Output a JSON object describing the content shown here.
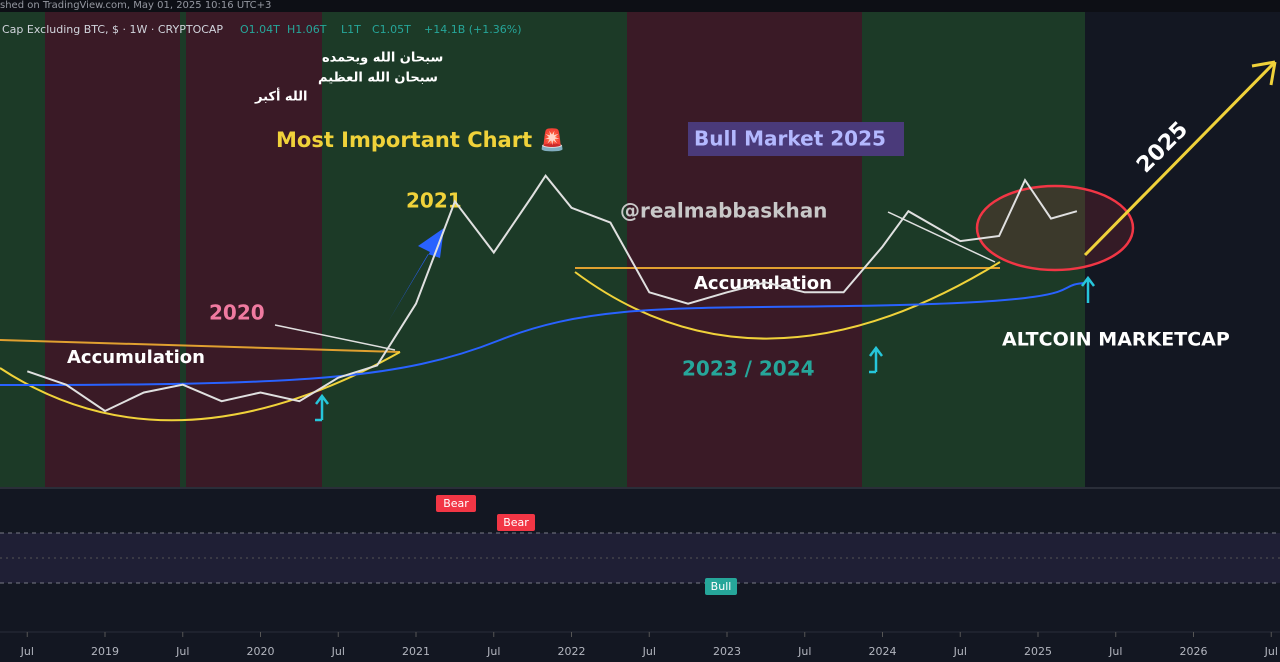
{
  "header": {
    "text": "shed on TradingView.com, May 01, 2025 10:16 UTC+3"
  },
  "symbol": {
    "name": "Cap Excluding BTC, $ · 1W · CRYPTOCAP",
    "open": "O1.04T",
    "high": "H1.06T",
    "low": "L1T",
    "close": "C1.05T",
    "change": "+14.1B (+1.36%)"
  },
  "arabic": [
    "سبحان الله وبحمده",
    "سبحان الله العظيم",
    "الله أكبر"
  ],
  "annotations": {
    "main_title": "Most Important Chart 🚨",
    "bull": "Bull Market 2025",
    "y2021": "2021",
    "y2020": "2020",
    "handle": "@realmabbaskhan",
    "accumulation_1": "Accumulation",
    "accumulation_2": "Accumulation",
    "y2023_2024": "2023 / 2024",
    "y2025": "2025",
    "altcoin": "ALTCOIN MARKETCAP"
  },
  "rsi_labels": {
    "bear_1": "Bear",
    "bear_2": "Bear",
    "bull": "Bull"
  },
  "chart_data": {
    "type": "line",
    "log_scale": true,
    "color": "#e0e0e0",
    "x": [
      "2018-07",
      "2018-10",
      "2019-01",
      "2019-04",
      "2019-07",
      "2019-10",
      "2020-01",
      "2020-04",
      "2020-07",
      "2020-10",
      "2021-01",
      "2021-04",
      "2021-07",
      "2021-10",
      "2021-11",
      "2022-01",
      "2022-04",
      "2022-07",
      "2022-10",
      "2023-01",
      "2023-04",
      "2023-07",
      "2023-10",
      "2024-01",
      "2024-03",
      "2024-07",
      "2024-10",
      "2024-12",
      "2025-02",
      "2025-04"
    ],
    "values": [
      0.12,
      0.1,
      0.07,
      0.09,
      0.1,
      0.08,
      0.09,
      0.08,
      0.11,
      0.13,
      0.3,
      1.2,
      0.6,
      1.3,
      1.7,
      1.1,
      0.9,
      0.35,
      0.3,
      0.35,
      0.4,
      0.35,
      0.35,
      0.65,
      1.05,
      0.7,
      0.75,
      1.6,
      0.95,
      1.05
    ],
    "ylim": [
      0.025,
      15
    ],
    "xticks": [
      {
        "value": "2018-07",
        "label": "Jul"
      },
      {
        "value": "2019-01",
        "label": "2019"
      },
      {
        "value": "2019-07",
        "label": "Jul"
      },
      {
        "value": "2020-01",
        "label": "2020"
      },
      {
        "value": "2020-07",
        "label": "Jul"
      },
      {
        "value": "2021-01",
        "label": "2021"
      },
      {
        "value": "2021-07",
        "label": "Jul"
      },
      {
        "value": "2022-01",
        "label": "2022"
      },
      {
        "value": "2022-07",
        "label": "Jul"
      },
      {
        "value": "2023-01",
        "label": "2023"
      },
      {
        "value": "2023-07",
        "label": "Jul"
      },
      {
        "value": "2024-01",
        "label": "2024"
      },
      {
        "value": "2024-07",
        "label": "Jul"
      },
      {
        "value": "2025-01",
        "label": "2025"
      },
      {
        "value": "2025-07",
        "label": "Jul"
      },
      {
        "value": "2026-01",
        "label": "2026"
      },
      {
        "value": "2026-07",
        "label": "Jul"
      }
    ]
  }
}
